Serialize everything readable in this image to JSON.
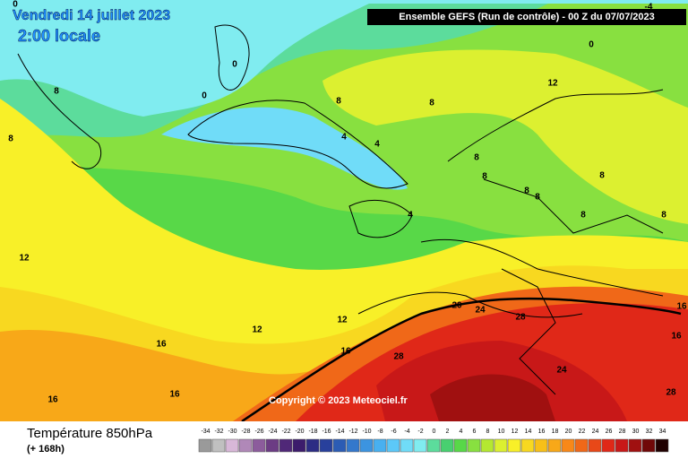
{
  "header": {
    "date": "Vendredi 14 juillet 2023",
    "local_time": "2:00 locale",
    "run": "Ensemble GEFS  (Run de contrôle)  -  00 Z du 07/07/2023"
  },
  "copyright": "Copyright © 2023 Meteociel.fr",
  "footer": {
    "title": "Température 850hPa",
    "lead": "(+ 168h)"
  },
  "legend": {
    "ticks": [
      -34,
      -32,
      -30,
      -28,
      -26,
      -24,
      -22,
      -20,
      -18,
      -16,
      -14,
      -12,
      -10,
      -8,
      -6,
      -4,
      -2,
      0,
      2,
      4,
      6,
      8,
      10,
      12,
      14,
      16,
      18,
      20,
      22,
      24,
      26,
      28,
      30,
      32,
      34
    ],
    "colors": [
      "#9a9a9a",
      "#c0c0c0",
      "#d8b8d8",
      "#b088b8",
      "#8c5c9c",
      "#6c3c84",
      "#502878",
      "#3c1c6c",
      "#2c2c84",
      "#28409c",
      "#2c5cb4",
      "#3478cc",
      "#3c94e0",
      "#48b0f0",
      "#5cc8f8",
      "#70dcf8",
      "#80ecf0",
      "#5cdc9c",
      "#48d070",
      "#58d848",
      "#88e040",
      "#b4e830",
      "#dcf030",
      "#f8f028",
      "#f8d820",
      "#f8c018",
      "#f8a818",
      "#f88818",
      "#f06818",
      "#e84818",
      "#e02818",
      "#c81818",
      "#a01010",
      "#700808",
      "#200000"
    ]
  },
  "contour_labels": [
    0,
    0,
    0,
    0,
    -4,
    8,
    8,
    8,
    8,
    4,
    4,
    8,
    8,
    8,
    8,
    8,
    8,
    8,
    4,
    12,
    12,
    12,
    12,
    16,
    16,
    16,
    16,
    16,
    16,
    20,
    24,
    28,
    28,
    24,
    28
  ]
}
